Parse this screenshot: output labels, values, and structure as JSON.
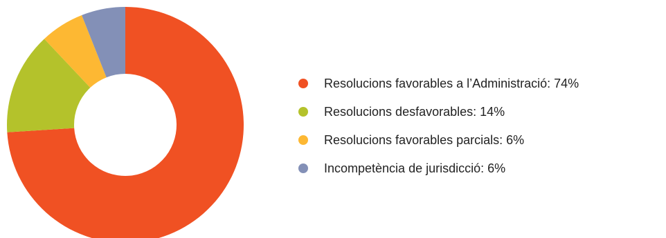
{
  "chart_data": {
    "type": "pie",
    "variant": "donut",
    "categories": [
      "Resolucions favorables a l’Administració",
      "Resolucions desfavorables",
      "Resolucions favorables parcials",
      "Incompetència de jurisdicció"
    ],
    "values": [
      74,
      14,
      6,
      6
    ],
    "unit": "%",
    "colors": [
      "#f05123",
      "#b4c22b",
      "#fdb833",
      "#8390b7"
    ],
    "legend_labels": [
      "Resolucions favorables a l’Administració: 74%",
      "Resolucions desfavorables: 14%",
      "Resolucions favorables parcials: 6%",
      "Incompetència de jurisdicció: 6%"
    ],
    "legend_position": "right",
    "start_angle": "top",
    "direction": "clockwise"
  }
}
